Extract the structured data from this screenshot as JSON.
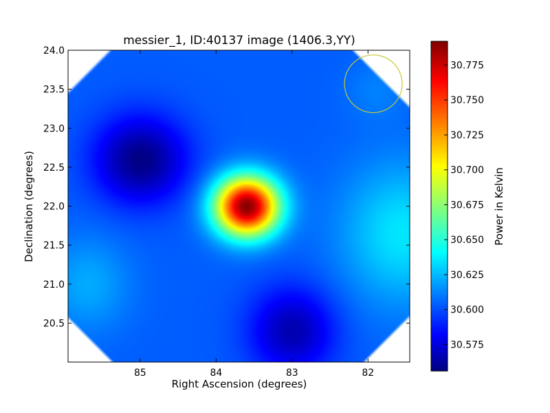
{
  "chart_data": {
    "type": "heatmap",
    "title": "messier_1, ID:40137 image (1406.3,YY)",
    "xlabel": "Right Ascension (degrees)",
    "ylabel": "Declination (degrees)",
    "xlim": [
      85.95,
      81.45
    ],
    "ylim": [
      20.0,
      24.0
    ],
    "x_ticks": [
      {
        "value": 85,
        "label": "85"
      },
      {
        "value": 84,
        "label": "84"
      },
      {
        "value": 83,
        "label": "83"
      },
      {
        "value": 82,
        "label": "82"
      }
    ],
    "y_ticks": [
      {
        "value": 20.5,
        "label": "20.5"
      },
      {
        "value": 21.0,
        "label": "21.0"
      },
      {
        "value": 21.5,
        "label": "21.5"
      },
      {
        "value": 22.0,
        "label": "22.0"
      },
      {
        "value": 22.5,
        "label": "22.5"
      },
      {
        "value": 23.0,
        "label": "23.0"
      },
      {
        "value": 23.5,
        "label": "23.5"
      },
      {
        "value": 24.0,
        "label": "24.0"
      }
    ],
    "colorbar": {
      "label": "Power in Kelvin",
      "colormap": "jet",
      "min": 30.556,
      "max": 30.792,
      "ticks": [
        {
          "value": 30.575,
          "label": "30.575"
        },
        {
          "value": 30.6,
          "label": "30.600"
        },
        {
          "value": 30.625,
          "label": "30.625"
        },
        {
          "value": 30.65,
          "label": "30.650"
        },
        {
          "value": 30.675,
          "label": "30.675"
        },
        {
          "value": 30.7,
          "label": "30.700"
        },
        {
          "value": 30.725,
          "label": "30.725"
        },
        {
          "value": 30.75,
          "label": "30.750"
        },
        {
          "value": 30.775,
          "label": "30.775"
        }
      ]
    },
    "features": [
      {
        "name": "source-peak",
        "ra": 83.6,
        "dec": 22.0,
        "value": 30.79
      },
      {
        "name": "low-upper-left",
        "ra": 85.0,
        "dec": 22.6,
        "value": 30.557
      },
      {
        "name": "low-bottom",
        "ra": 83.0,
        "dec": 20.3,
        "value": 30.563
      },
      {
        "name": "elevated-right",
        "ra": 81.6,
        "dec": 21.6,
        "value": 30.64
      }
    ],
    "beam_circle": {
      "ra": 81.93,
      "dec": 23.57,
      "radius_ra": 0.38,
      "radius_dec": 0.37,
      "color": "#c8c832"
    }
  }
}
